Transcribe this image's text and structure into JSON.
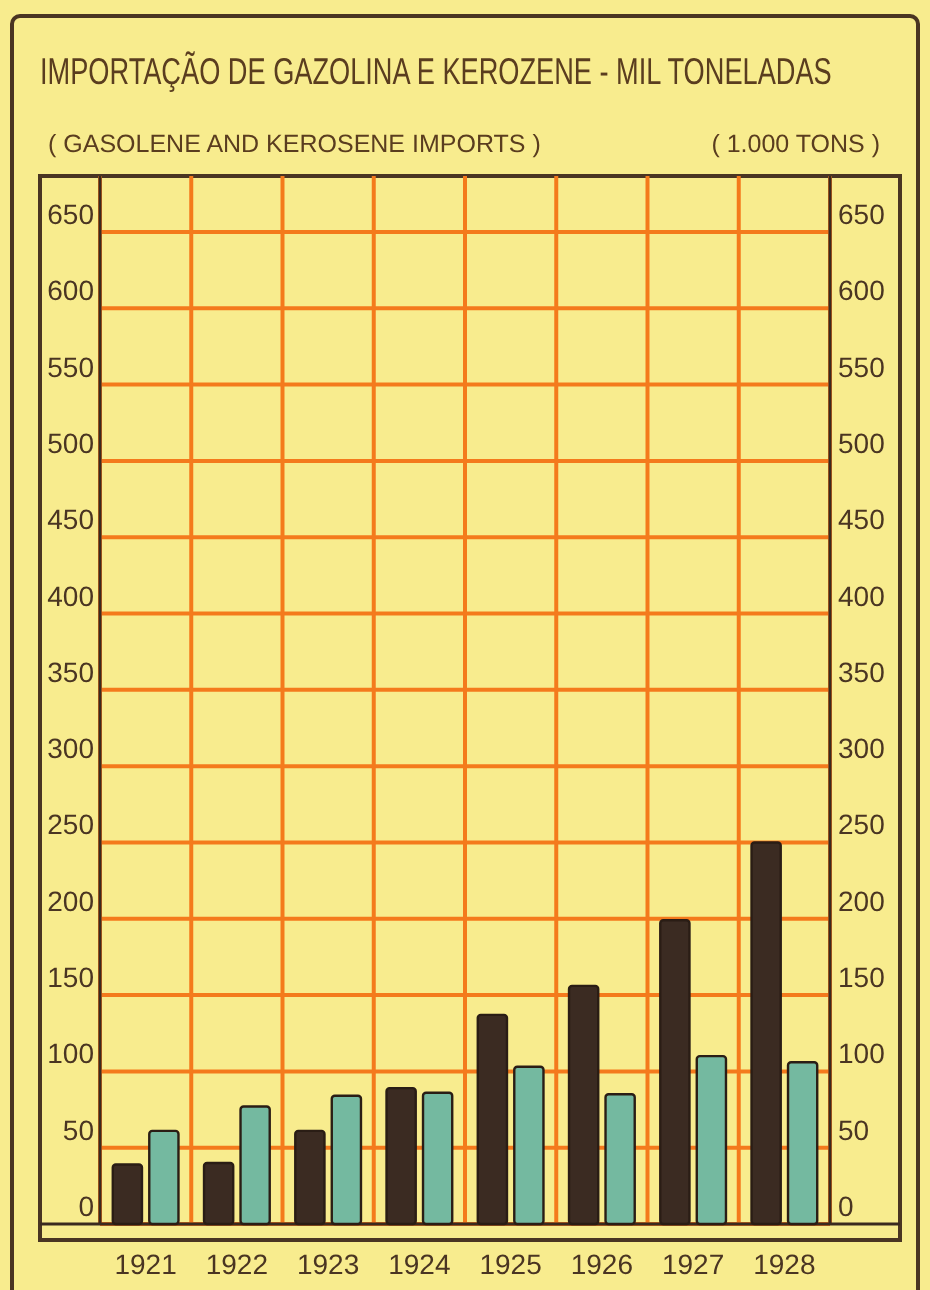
{
  "chart_data": {
    "type": "bar",
    "title": "IMPORTAÇÃO DE GAZOLINA E KEROZENE - MIL TONELADAS",
    "subtitle": "( GASOLENE AND KEROSENE IMPORTS )",
    "annotations": [
      "( 1.000 TONS )"
    ],
    "categories": [
      "1921",
      "1922",
      "1923",
      "1924",
      "1925",
      "1926",
      "1927",
      "1928"
    ],
    "series": [
      {
        "color": "#3b2b22",
        "values": [
          39,
          40,
          61,
          89,
          137,
          156,
          199,
          250
        ]
      },
      {
        "color": "#74b9a0",
        "values": [
          61,
          77,
          84,
          86,
          103,
          85,
          110,
          106
        ]
      }
    ],
    "ylim": [
      0,
      650
    ],
    "yticks": [
      0,
      50,
      100,
      150,
      200,
      250,
      300,
      350,
      400,
      450,
      500,
      550,
      600,
      650
    ],
    "y2lim": [
      0,
      650
    ],
    "y2ticks": [
      0,
      50,
      100,
      150,
      200,
      250,
      300,
      350,
      400,
      450,
      500,
      550,
      600,
      650
    ],
    "grid": true
  }
}
